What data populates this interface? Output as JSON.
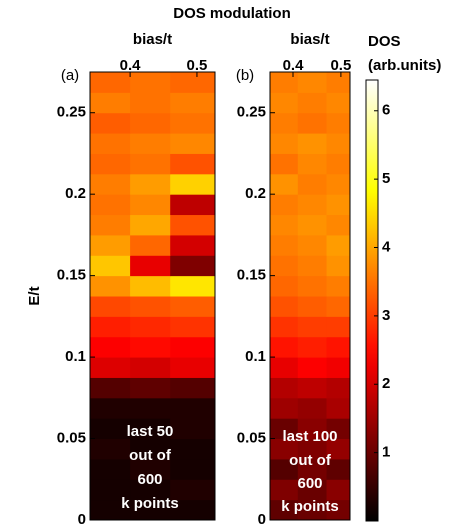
{
  "title": "DOS modulation",
  "colorbar": {
    "label": [
      "DOS",
      "(arb.units)"
    ],
    "colormap": "hot",
    "clim": [
      0,
      6.45
    ],
    "ticks": [
      1,
      2,
      3,
      4,
      5,
      6
    ]
  },
  "chart_data": [
    {
      "type": "heatmap",
      "panel_label": "(a)",
      "xlabel": "bias/t",
      "ylabel": "E/t",
      "xlim": [
        0.34,
        0.527
      ],
      "xticks": [
        0.4,
        0.5
      ],
      "ylim": [
        0,
        0.275
      ],
      "yticks": [
        0,
        0.05,
        0.1,
        0.15,
        0.2,
        0.25
      ],
      "xbins": [
        0.34,
        0.4,
        0.46,
        0.527
      ],
      "ybins": [
        0,
        0.0125,
        0.025,
        0.0375,
        0.05,
        0.0625,
        0.075,
        0.0875,
        0.1,
        0.1125,
        0.125,
        0.1375,
        0.15,
        0.1625,
        0.175,
        0.1875,
        0.2,
        0.2125,
        0.225,
        0.2375,
        0.25,
        0.2625,
        0.275
      ],
      "z": [
        [
          0.2,
          0.2,
          0.2
        ],
        [
          0.2,
          0.2,
          0.3
        ],
        [
          0.2,
          0.3,
          0.2
        ],
        [
          0.3,
          0.2,
          0.2
        ],
        [
          0.2,
          0.2,
          0.3
        ],
        [
          0.3,
          0.3,
          0.3
        ],
        [
          0.8,
          0.9,
          0.8
        ],
        [
          2.1,
          2.0,
          2.2
        ],
        [
          2.4,
          2.5,
          2.4
        ],
        [
          2.7,
          2.8,
          2.9
        ],
        [
          3.1,
          3.2,
          3.3
        ],
        [
          3.8,
          4.2,
          4.6
        ],
        [
          4.3,
          2.2,
          1.2
        ],
        [
          3.9,
          3.4,
          2.0
        ],
        [
          3.6,
          4.0,
          3.2
        ],
        [
          3.5,
          3.7,
          1.8
        ],
        [
          3.6,
          3.9,
          4.4
        ],
        [
          3.4,
          3.5,
          3.2
        ],
        [
          3.5,
          3.6,
          3.7
        ],
        [
          3.3,
          3.4,
          3.5
        ],
        [
          3.6,
          3.5,
          3.6
        ],
        [
          3.4,
          3.5,
          3.4
        ]
      ],
      "annotation": [
        "last 50",
        "out of",
        "600",
        "k points"
      ]
    },
    {
      "type": "heatmap",
      "panel_label": "(b)",
      "xlabel": "bias/t",
      "xlim": [
        0.352,
        0.519
      ],
      "xticks": [
        0.4,
        0.5
      ],
      "ylim": [
        0,
        0.275
      ],
      "yticks": [
        0,
        0.05,
        0.1,
        0.15,
        0.2,
        0.25
      ],
      "xbins": [
        0.352,
        0.41,
        0.47,
        0.519
      ],
      "ybins": [
        0,
        0.0125,
        0.025,
        0.0375,
        0.05,
        0.0625,
        0.075,
        0.0875,
        0.1,
        0.1125,
        0.125,
        0.1375,
        0.15,
        0.1625,
        0.175,
        0.1875,
        0.2,
        0.2125,
        0.225,
        0.2375,
        0.25,
        0.2625,
        0.275
      ],
      "z": [
        [
          0.9,
          1.0,
          1.1
        ],
        [
          1.2,
          1.0,
          1.3
        ],
        [
          0.8,
          1.1,
          0.9
        ],
        [
          1.3,
          1.2,
          1.4
        ],
        [
          1.0,
          1.3,
          1.1
        ],
        [
          1.5,
          1.4,
          1.6
        ],
        [
          1.7,
          1.8,
          1.7
        ],
        [
          2.2,
          2.4,
          2.3
        ],
        [
          2.6,
          2.7,
          2.6
        ],
        [
          2.9,
          3.0,
          3.0
        ],
        [
          3.2,
          3.3,
          3.4
        ],
        [
          3.4,
          3.5,
          3.6
        ],
        [
          3.5,
          3.6,
          3.8
        ],
        [
          3.6,
          3.7,
          3.9
        ],
        [
          3.7,
          3.8,
          3.7
        ],
        [
          3.6,
          3.7,
          3.8
        ],
        [
          3.8,
          3.6,
          3.7
        ],
        [
          3.5,
          3.7,
          3.6
        ],
        [
          3.7,
          3.8,
          3.7
        ],
        [
          3.6,
          3.5,
          3.6
        ],
        [
          3.7,
          3.6,
          3.7
        ],
        [
          3.6,
          3.7,
          3.6
        ]
      ],
      "annotation": [
        "last 100",
        "out of",
        "600",
        "k points"
      ]
    }
  ]
}
